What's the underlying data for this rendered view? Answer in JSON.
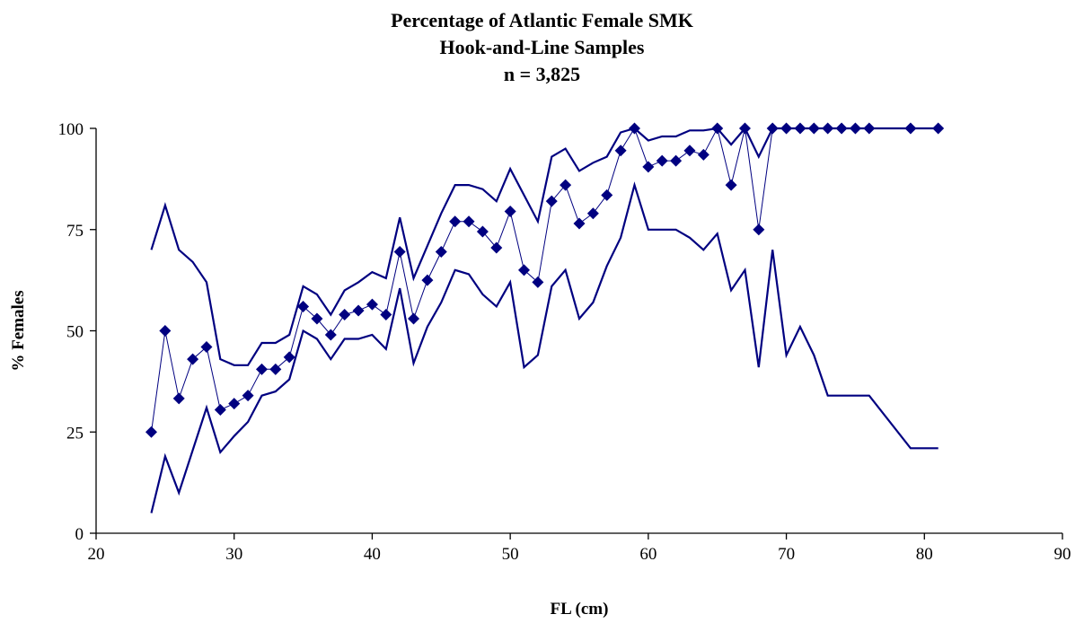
{
  "chart_data": {
    "type": "line",
    "title_lines": [
      "Percentage of Atlantic Female SMK",
      "Hook-and-Line Samples",
      "n = 3,825"
    ],
    "xlabel": "FL (cm)",
    "ylabel": "% Females",
    "xlim": [
      20,
      90
    ],
    "ylim": [
      0,
      100
    ],
    "xticks": [
      20,
      30,
      40,
      50,
      60,
      70,
      80,
      90
    ],
    "yticks": [
      0,
      25,
      50,
      75,
      100
    ],
    "grid": false,
    "colors": {
      "series": "#000080",
      "axis": "#000000"
    },
    "series": [
      {
        "role": "observed",
        "marker": "diamond",
        "x": [
          24,
          25,
          26,
          27,
          28,
          29,
          30,
          31,
          32,
          33,
          34,
          35,
          36,
          37,
          38,
          39,
          40,
          41,
          42,
          43,
          44,
          45,
          46,
          47,
          48,
          49,
          50,
          51,
          52,
          53,
          54,
          55,
          56,
          57,
          58,
          59,
          60,
          61,
          62,
          63,
          64,
          65,
          66,
          67,
          68,
          69,
          70,
          71,
          72,
          73,
          74,
          75,
          76,
          79,
          81
        ],
        "y": [
          25,
          50,
          33.3,
          43,
          46,
          30.5,
          32,
          34,
          40.5,
          40.5,
          43.5,
          56,
          53,
          49,
          54,
          55,
          56.5,
          54,
          69.5,
          53,
          62.5,
          69.5,
          77,
          77,
          74.5,
          70.5,
          79.5,
          65,
          62,
          82,
          86,
          76.5,
          79,
          83.5,
          94.5,
          100,
          90.5,
          92,
          92,
          94.5,
          93.5,
          100,
          86,
          100,
          75,
          100,
          100,
          100,
          100,
          100,
          100,
          100,
          100,
          100,
          100
        ]
      },
      {
        "role": "upper",
        "x": [
          24,
          25,
          26,
          27,
          28,
          29,
          30,
          31,
          32,
          33,
          34,
          35,
          36,
          37,
          38,
          39,
          40,
          41,
          42,
          43,
          44,
          45,
          46,
          47,
          48,
          49,
          50,
          51,
          52,
          53,
          54,
          55,
          56,
          57,
          58,
          59,
          60,
          61,
          62,
          63,
          64,
          65,
          66,
          67,
          68,
          69,
          70,
          71,
          72,
          73,
          74,
          75,
          76,
          79,
          81
        ],
        "y": [
          70,
          81,
          70,
          67,
          62,
          43,
          41.5,
          41.5,
          47,
          47,
          49,
          61,
          59,
          54,
          60,
          62,
          64.5,
          63,
          78,
          63,
          71,
          79,
          86,
          86,
          85,
          82,
          90,
          83.5,
          77,
          93,
          95,
          89.5,
          91.5,
          93,
          99,
          100,
          97,
          98,
          98,
          99.5,
          99.5,
          100,
          96,
          100,
          93,
          100,
          100,
          100,
          100,
          100,
          100,
          100,
          100,
          100,
          100
        ]
      },
      {
        "role": "lower",
        "x": [
          24,
          25,
          26,
          27,
          28,
          29,
          30,
          31,
          32,
          33,
          34,
          35,
          36,
          37,
          38,
          39,
          40,
          41,
          42,
          43,
          44,
          45,
          46,
          47,
          48,
          49,
          50,
          51,
          52,
          53,
          54,
          55,
          56,
          57,
          58,
          59,
          60,
          61,
          62,
          63,
          64,
          65,
          66,
          67,
          68,
          69,
          70,
          71,
          72,
          73,
          74,
          75,
          76,
          79,
          81
        ],
        "y": [
          5,
          19,
          10,
          20.5,
          31,
          20,
          24,
          27.5,
          34,
          35,
          38,
          50,
          48,
          43,
          48,
          48,
          49,
          45.5,
          60.5,
          42,
          51,
          57,
          65,
          64,
          59,
          56,
          62,
          41,
          44,
          61,
          65,
          53,
          57,
          66,
          73,
          86,
          75,
          75,
          75,
          73,
          70,
          74,
          60,
          65,
          41,
          70,
          44,
          51,
          44,
          34,
          34,
          34,
          34,
          21,
          21
        ]
      }
    ]
  }
}
